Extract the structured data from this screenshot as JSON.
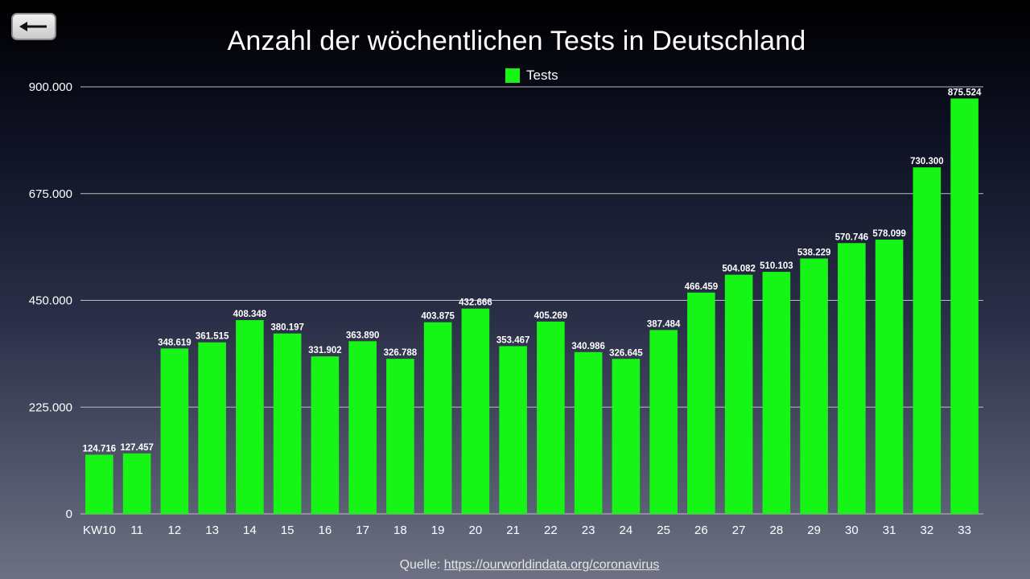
{
  "title": "Anzahl der wöchentlichen Tests in Deutschland",
  "source": {
    "prefix": "Quelle:",
    "link_text": "https://ourworldindata.org/coronavirus"
  },
  "back_button": {
    "icon": "arrow-left-icon"
  },
  "colors": {
    "bar": "#16f516",
    "grid": "#bdbdbd",
    "text": "#ffffff"
  },
  "chart_data": {
    "type": "bar",
    "title": "Anzahl der wöchentlichen Tests in Deutschland",
    "xlabel": "",
    "ylabel": "",
    "legend": {
      "position": "top-center",
      "entries": [
        "Tests"
      ]
    },
    "grid": true,
    "ylim": [
      0,
      900000
    ],
    "yticks": [
      0,
      225000,
      450000,
      675000,
      900000
    ],
    "ytick_labels": [
      "0",
      "225.000",
      "450.000",
      "675.000",
      "900.000"
    ],
    "categories": [
      "KW10",
      "11",
      "12",
      "13",
      "14",
      "15",
      "16",
      "17",
      "18",
      "19",
      "20",
      "21",
      "22",
      "23",
      "24",
      "25",
      "26",
      "27",
      "28",
      "29",
      "30",
      "31",
      "32",
      "33"
    ],
    "series": [
      {
        "name": "Tests",
        "values": [
          124716,
          127457,
          348619,
          361515,
          408348,
          380197,
          331902,
          363890,
          326788,
          403875,
          432666,
          353467,
          405269,
          340986,
          326645,
          387484,
          466459,
          504082,
          510103,
          538229,
          570746,
          578099,
          730300,
          875524
        ],
        "value_labels": [
          "124.716",
          "127.457",
          "348.619",
          "361.515",
          "408.348",
          "380.197",
          "331.902",
          "363.890",
          "326.788",
          "403.875",
          "432.666",
          "353.467",
          "405.269",
          "340.986",
          "326.645",
          "387.484",
          "466.459",
          "504.082",
          "510.103",
          "538.229",
          "570.746",
          "578.099",
          "730.300",
          "875.524"
        ]
      }
    ]
  }
}
